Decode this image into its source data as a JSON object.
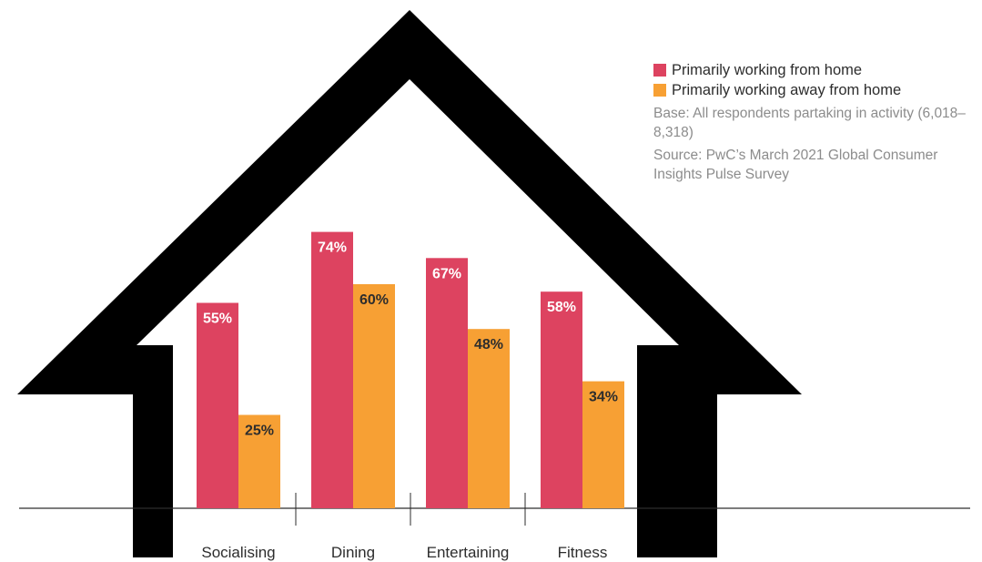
{
  "colors": {
    "home": "#dd4360",
    "away": "#f7a034",
    "house": "#000000",
    "baseline": "#2d2d2d",
    "label_on_home": "#ffffff",
    "label_on_away": "#2d2d2d"
  },
  "legend": {
    "home_label": "Primarily working from home",
    "away_label": "Primarily working away from home"
  },
  "notes": {
    "base": "Base: All respondents partaking in activity (6,018–8,318)",
    "source": "Source: PwC’s March 2021 Global Consumer Insights Pulse Survey"
  },
  "chart_data": {
    "type": "bar",
    "categories": [
      "Socialising",
      "Dining",
      "Entertaining",
      "Fitness"
    ],
    "series": [
      {
        "name": "Primarily working from home",
        "values": [
          55,
          74,
          67,
          58
        ],
        "labels": [
          "55%",
          "74%",
          "67%",
          "58%"
        ]
      },
      {
        "name": "Primarily working away from home",
        "values": [
          25,
          60,
          48,
          34
        ],
        "labels": [
          "25%",
          "60%",
          "48%",
          "34%"
        ]
      }
    ],
    "ylim": [
      0,
      100
    ],
    "grid": false,
    "legend_position": "top-right"
  }
}
